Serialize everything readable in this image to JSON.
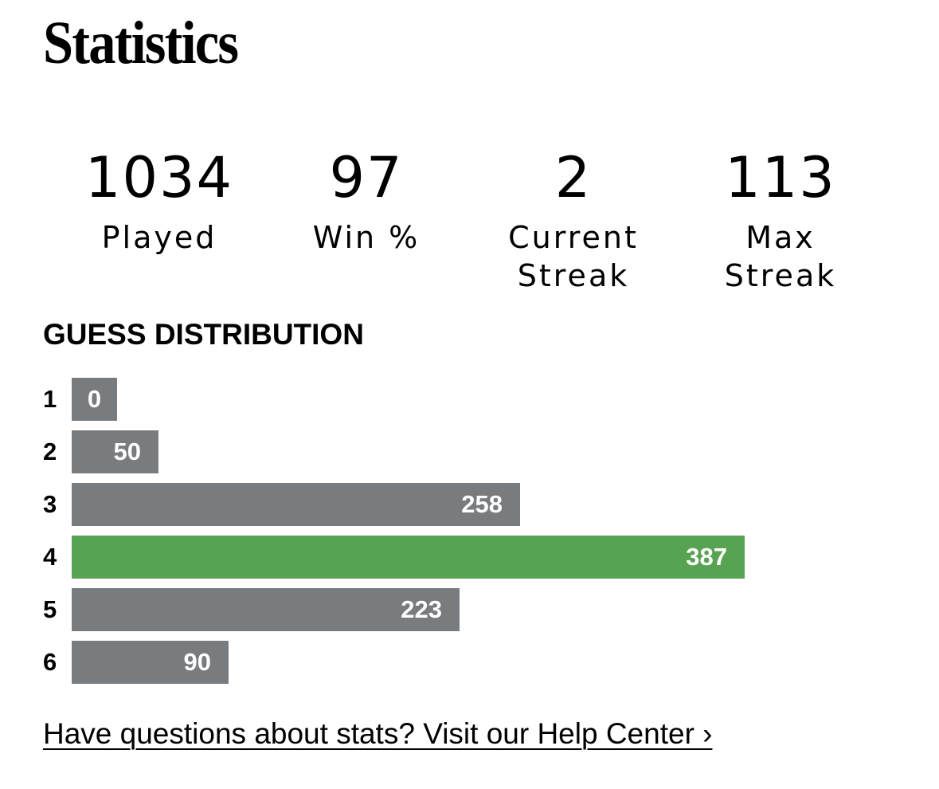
{
  "header": {
    "title": "Statistics"
  },
  "stats": [
    {
      "value": "1034",
      "label": "Played"
    },
    {
      "value": "97",
      "label": "Win %"
    },
    {
      "value": "2",
      "label": "Current\nStreak"
    },
    {
      "value": "113",
      "label": "Max\nStreak"
    }
  ],
  "distribution": {
    "heading": "GUESS DISTRIBUTION",
    "highlight_index": 3,
    "colors": {
      "bar": "#787c7e",
      "highlight": "#58a351",
      "count_text": "#ffffff"
    },
    "rows": [
      {
        "guess": "1",
        "count": 0
      },
      {
        "guess": "2",
        "count": 50
      },
      {
        "guess": "3",
        "count": 258
      },
      {
        "guess": "4",
        "count": 387
      },
      {
        "guess": "5",
        "count": 223
      },
      {
        "guess": "6",
        "count": 90
      }
    ]
  },
  "footer": {
    "help_link": "Have questions about stats? Visit our Help Center ›"
  }
}
